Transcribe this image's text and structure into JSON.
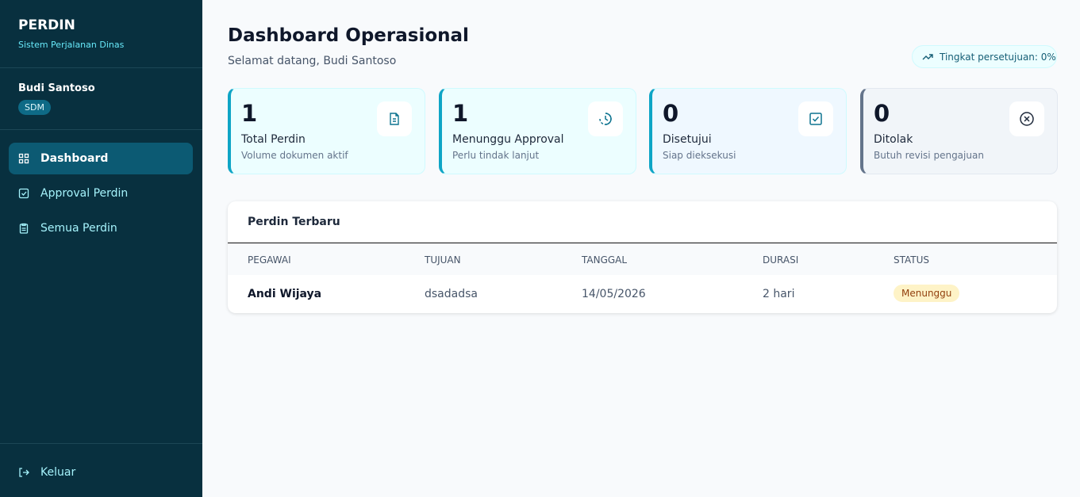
{
  "sidebar": {
    "brand": "PERDIN",
    "tagline": "Sistem Perjalanan Dinas",
    "user": {
      "name": "Budi Santoso",
      "role": "SDM"
    },
    "nav": [
      "Dashboard",
      "Approval Perdin",
      "Semua Perdin"
    ],
    "logout": "Keluar"
  },
  "header": {
    "title": "Dashboard Operasional",
    "subtitle": "Selamat datang, Budi Santoso",
    "badge": "Tingkat persetujuan: 0%"
  },
  "stats": [
    {
      "value": 1,
      "label": "Total Perdin",
      "note": "Volume dokumen aktif"
    },
    {
      "value": 1,
      "label": "Menunggu Approval",
      "note": "Perlu tindak lanjut"
    },
    {
      "value": 0,
      "label": "Disetujui",
      "note": "Siap dieksekusi"
    },
    {
      "value": 0,
      "label": "Ditolak",
      "note": "Butuh revisi pengajuan"
    }
  ],
  "table": {
    "title": "Perdin Terbaru",
    "columns": [
      "PEGAWAI",
      "TUJUAN",
      "TANGGAL",
      "DURASI",
      "STATUS"
    ],
    "rows": [
      [
        "Andi Wijaya",
        "dsadadsa",
        "14/05/2026",
        "2 hari",
        "Menunggu"
      ]
    ]
  }
}
